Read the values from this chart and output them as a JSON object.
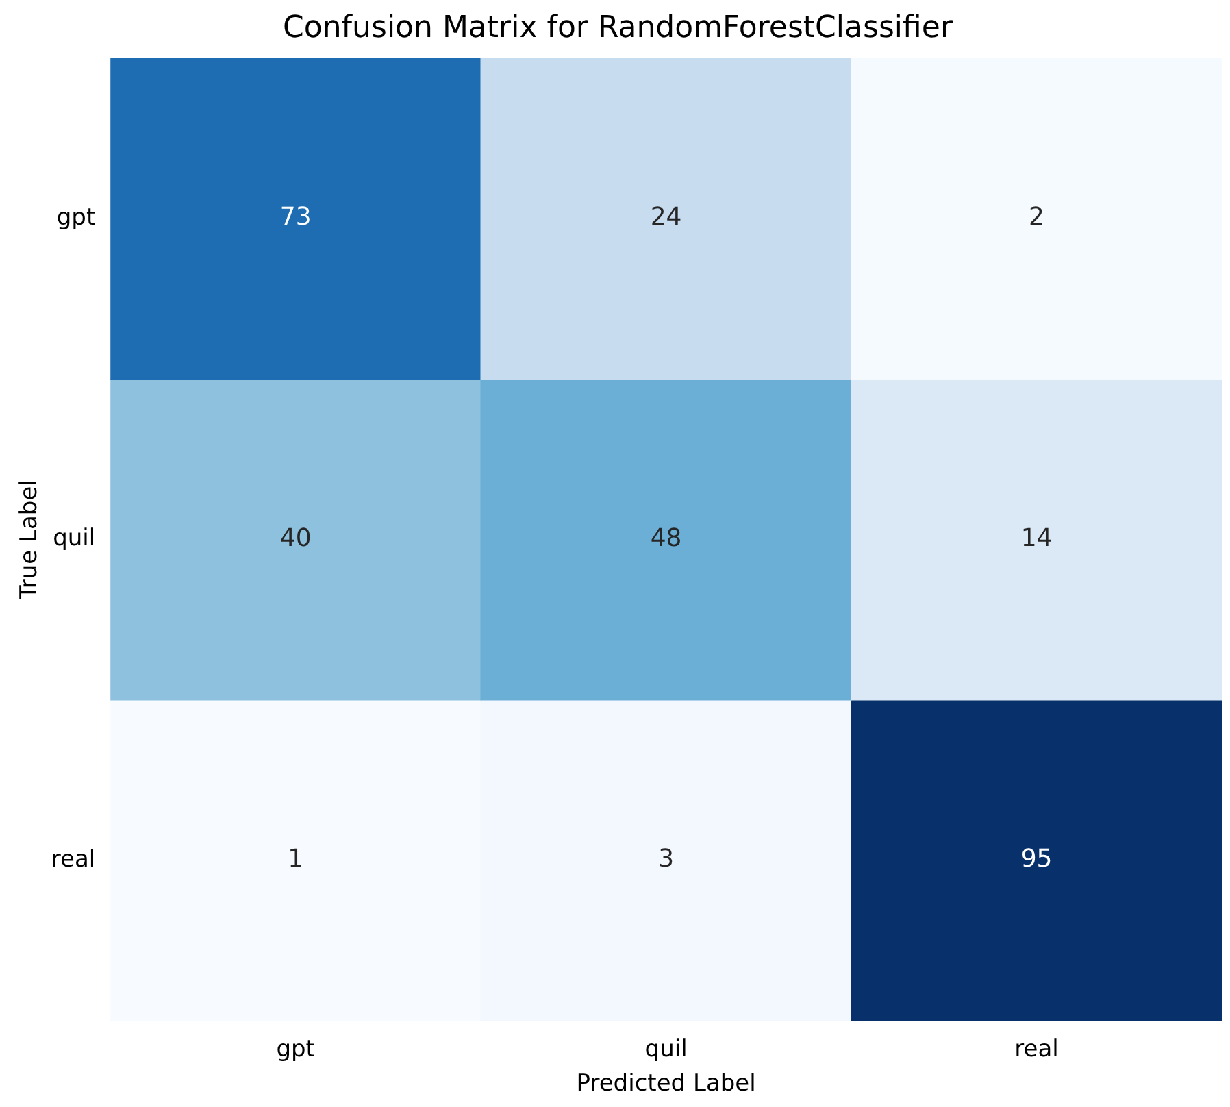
{
  "chart_data": {
    "type": "heatmap",
    "title": "Confusion Matrix for RandomForestClassifier",
    "xlabel": "Predicted Label",
    "ylabel": "True Label",
    "categories": [
      "gpt",
      "quil",
      "real"
    ],
    "y_categories": [
      "gpt",
      "quil",
      "real"
    ],
    "cells": [
      [
        73,
        24,
        2
      ],
      [
        40,
        48,
        14
      ],
      [
        1,
        3,
        95
      ]
    ],
    "data_labels": true
  }
}
